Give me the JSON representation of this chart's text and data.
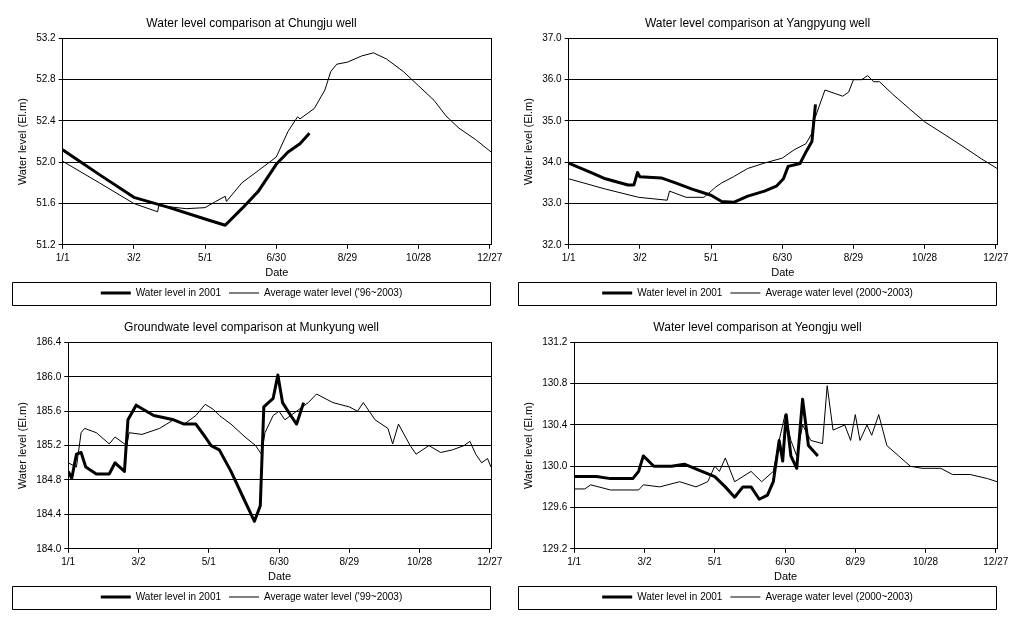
{
  "chart_data": [
    {
      "type": "line",
      "title": "Water level comparison at Chungju well",
      "xlabel": "Date",
      "ylabel": "Water level (El.m)",
      "legend": "bottom",
      "grid": "y",
      "xlim": [
        "--01-01",
        "--12-28"
      ],
      "xticks": [
        {
          "value": "--01-01",
          "label": "1/1"
        },
        {
          "value": "--03-02",
          "label": "3/2"
        },
        {
          "value": "--05-01",
          "label": "5/1"
        },
        {
          "value": "--06-30",
          "label": "6/30"
        },
        {
          "value": "--08-29",
          "label": "8/29"
        },
        {
          "value": "--10-28",
          "label": "10/28"
        },
        {
          "value": "--12-27",
          "label": "12/27"
        }
      ],
      "ylim": [
        51.2,
        53.2
      ],
      "yticks": [
        {
          "value": 51.2,
          "label": "51.2"
        },
        {
          "value": 51.6,
          "label": "51.6"
        },
        {
          "value": 52,
          "label": "52.0"
        },
        {
          "value": 52.4,
          "label": "52.4"
        },
        {
          "value": 52.8,
          "label": "52.8"
        },
        {
          "value": 53.2,
          "label": "53.2"
        }
      ],
      "series": [
        {
          "name": "Water level in 2001",
          "color": "#000000",
          "x": [
            "--01-01",
            "--02-01",
            "--03-02",
            "--04-01",
            "--05-01",
            "--05-18",
            "--06-01",
            "--06-15",
            "--06-30",
            "--07-10",
            "--07-20",
            "--07-28"
          ],
          "values": [
            52.12,
            51.88,
            51.66,
            51.56,
            51.45,
            51.39,
            51.55,
            51.72,
            51.98,
            52.1,
            52.18,
            52.28
          ]
        },
        {
          "name": "Average water level ('96~2003)",
          "color": "#000000",
          "x": [
            "--01-01",
            "--02-01",
            "--03-02",
            "--03-22",
            "--03-23",
            "--04-15",
            "--05-01",
            "--05-10",
            "--05-18",
            "--05-19",
            "--06-01",
            "--06-15",
            "--06-30",
            "--07-10",
            "--07-18",
            "--07-20",
            "--08-01",
            "--08-10",
            "--08-15",
            "--08-20",
            "--08-29",
            "--09-10",
            "--09-20",
            "--10-01",
            "--10-15",
            "--10-28",
            "--11-10",
            "--11-20",
            "--12-01",
            "--12-15",
            "--12-28"
          ],
          "values": [
            52.01,
            51.8,
            51.6,
            51.52,
            51.58,
            51.55,
            51.56,
            51.62,
            51.67,
            51.62,
            51.8,
            51.92,
            52.05,
            52.3,
            52.44,
            52.42,
            52.52,
            52.7,
            52.88,
            52.95,
            52.97,
            53.03,
            53.06,
            53.0,
            52.88,
            52.74,
            52.6,
            52.45,
            52.33,
            52.22,
            52.1
          ]
        }
      ]
    },
    {
      "type": "line",
      "title": "Water level comparison at Yangpyung well",
      "xlabel": "Date",
      "ylabel": "Water level (El.m)",
      "legend": "bottom",
      "grid": "y",
      "xlim": [
        "--01-01",
        "--12-28"
      ],
      "xticks": [
        {
          "value": "--01-01",
          "label": "1/1"
        },
        {
          "value": "--03-02",
          "label": "3/2"
        },
        {
          "value": "--05-01",
          "label": "5/1"
        },
        {
          "value": "--06-30",
          "label": "6/30"
        },
        {
          "value": "--08-29",
          "label": "8/29"
        },
        {
          "value": "--10-28",
          "label": "10/28"
        },
        {
          "value": "--12-27",
          "label": "12/27"
        }
      ],
      "ylim": [
        32,
        37
      ],
      "yticks": [
        {
          "value": 32,
          "label": "32.0"
        },
        {
          "value": 33,
          "label": "33.0"
        },
        {
          "value": 34,
          "label": "34.0"
        },
        {
          "value": 35,
          "label": "35.0"
        },
        {
          "value": 36,
          "label": "36.0"
        },
        {
          "value": 37,
          "label": "37.0"
        }
      ],
      "series": [
        {
          "name": "Water level in 2001",
          "color": "#000000",
          "x": [
            "--01-01",
            "--01-20",
            "--02-01",
            "--02-20",
            "--02-25",
            "--02-28",
            "--03-02",
            "--03-20",
            "--04-01",
            "--04-15",
            "--05-01",
            "--05-10",
            "--05-20",
            "--06-01",
            "--06-15",
            "--06-25",
            "--07-01",
            "--07-05",
            "--07-15",
            "--07-20",
            "--07-25",
            "--07-28"
          ],
          "values": [
            33.98,
            33.75,
            33.6,
            33.45,
            33.45,
            33.75,
            33.65,
            33.62,
            33.5,
            33.35,
            33.2,
            33.05,
            33.03,
            33.18,
            33.3,
            33.42,
            33.6,
            33.9,
            33.97,
            34.25,
            34.5,
            35.4
          ]
        },
        {
          "name": "Average water level (2000~2003)",
          "color": "#000000",
          "x": [
            "--01-01",
            "--02-01",
            "--03-01",
            "--03-25",
            "--03-27",
            "--04-10",
            "--04-25",
            "--05-05",
            "--05-10",
            "--05-20",
            "--06-01",
            "--06-15",
            "--06-30",
            "--07-10",
            "--07-20",
            "--07-25",
            "--07-26",
            "--07-28",
            "--08-05",
            "--08-20",
            "--08-25",
            "--08-29",
            "--09-05",
            "--09-10",
            "--09-15",
            "--09-20",
            "--10-01",
            "--10-15",
            "--10-28",
            "--11-15",
            "--12-01",
            "--12-15",
            "--12-28"
          ],
          "values": [
            33.6,
            33.35,
            33.15,
            33.08,
            33.3,
            33.15,
            33.15,
            33.4,
            33.5,
            33.65,
            33.85,
            33.98,
            34.1,
            34.3,
            34.45,
            34.7,
            35.0,
            35.1,
            35.75,
            35.6,
            35.7,
            36.0,
            36.0,
            36.1,
            35.95,
            35.95,
            35.65,
            35.3,
            34.98,
            34.65,
            34.35,
            34.08,
            33.85
          ]
        }
      ]
    },
    {
      "type": "line",
      "title": "Groundwate level comparison at Munkyung well",
      "xlabel": "Date",
      "ylabel": "Water level (El.m)",
      "legend": "bottom",
      "grid": "y",
      "xlim": [
        "--01-01",
        "--12-28"
      ],
      "xticks": [
        {
          "value": "--01-01",
          "label": "1/1"
        },
        {
          "value": "--03-02",
          "label": "3/2"
        },
        {
          "value": "--05-01",
          "label": "5/1"
        },
        {
          "value": "--06-30",
          "label": "6/30"
        },
        {
          "value": "--08-29",
          "label": "8/29"
        },
        {
          "value": "--10-28",
          "label": "10/28"
        },
        {
          "value": "--12-27",
          "label": "12/27"
        }
      ],
      "ylim": [
        184,
        186.4
      ],
      "yticks": [
        {
          "value": 184,
          "label": "184.0"
        },
        {
          "value": 184.4,
          "label": "184.4"
        },
        {
          "value": 184.8,
          "label": "184.8"
        },
        {
          "value": 185.2,
          "label": "185.2"
        },
        {
          "value": 185.6,
          "label": "185.6"
        },
        {
          "value": 186,
          "label": "186.0"
        },
        {
          "value": 186.4,
          "label": "186.4"
        }
      ],
      "series": [
        {
          "name": "Water level in 2001",
          "color": "#000000",
          "x": [
            "--01-01",
            "--01-04",
            "--01-08",
            "--01-12",
            "--01-16",
            "--01-25",
            "--02-05",
            "--02-10",
            "--02-18",
            "--02-21",
            "--02-28",
            "--03-15",
            "--04-01",
            "--04-10",
            "--04-20",
            "--04-28",
            "--05-03",
            "--05-10",
            "--05-20",
            "--06-01",
            "--06-09",
            "--06-14",
            "--06-17",
            "--06-25",
            "--06-29",
            "--07-03",
            "--07-10",
            "--07-15",
            "--07-21"
          ],
          "values": [
            184.9,
            184.82,
            185.1,
            185.12,
            184.95,
            184.87,
            184.87,
            185.0,
            184.9,
            185.5,
            185.67,
            185.55,
            185.5,
            185.45,
            185.45,
            185.3,
            185.2,
            185.15,
            184.9,
            184.55,
            184.32,
            184.5,
            185.65,
            185.75,
            186.02,
            185.7,
            185.55,
            185.45,
            185.7
          ]
        },
        {
          "name": "Average water level ('99~2003)",
          "color": "#000000",
          "x": [
            "--01-01",
            "--01-08",
            "--01-12",
            "--01-15",
            "--01-25",
            "--02-05",
            "--02-10",
            "--02-20",
            "--02-22",
            "--03-05",
            "--03-20",
            "--04-01",
            "--04-10",
            "--04-20",
            "--04-28",
            "--05-05",
            "--05-10",
            "--05-20",
            "--06-01",
            "--06-10",
            "--06-15",
            "--06-18",
            "--06-25",
            "--06-30",
            "--07-05",
            "--07-15",
            "--07-25",
            "--08-01",
            "--08-15",
            "--08-29",
            "--09-05",
            "--09-10",
            "--09-20",
            "--10-01",
            "--10-05",
            "--10-10",
            "--10-20",
            "--10-25",
            "--11-05",
            "--11-15",
            "--11-25",
            "--12-05",
            "--12-10",
            "--12-15",
            "--12-20",
            "--12-25",
            "--12-28"
          ],
          "values": [
            185.0,
            184.95,
            185.35,
            185.4,
            185.35,
            185.22,
            185.3,
            185.2,
            185.35,
            185.33,
            185.4,
            185.5,
            185.45,
            185.55,
            185.68,
            185.62,
            185.55,
            185.45,
            185.3,
            185.2,
            185.1,
            185.35,
            185.55,
            185.6,
            185.5,
            185.6,
            185.7,
            185.8,
            185.7,
            185.65,
            185.6,
            185.7,
            185.5,
            185.4,
            185.22,
            185.45,
            185.2,
            185.1,
            185.2,
            185.12,
            185.15,
            185.2,
            185.25,
            185.1,
            185.0,
            185.05,
            184.95
          ]
        }
      ]
    },
    {
      "type": "line",
      "title": "Water level comparison at Yeongju well",
      "xlabel": "Date",
      "ylabel": "Water level (El.m)",
      "legend": "bottom",
      "grid": "y",
      "xlim": [
        "--01-01",
        "--12-28"
      ],
      "xticks": [
        {
          "value": "--01-01",
          "label": "1/1"
        },
        {
          "value": "--03-02",
          "label": "3/2"
        },
        {
          "value": "--05-01",
          "label": "5/1"
        },
        {
          "value": "--06-30",
          "label": "6/30"
        },
        {
          "value": "--08-29",
          "label": "8/29"
        },
        {
          "value": "--10-28",
          "label": "10/28"
        },
        {
          "value": "--12-27",
          "label": "12/27"
        }
      ],
      "ylim": [
        129.2,
        131.2
      ],
      "yticks": [
        {
          "value": 129.2,
          "label": "129.2"
        },
        {
          "value": 129.6,
          "label": "129.6"
        },
        {
          "value": 130,
          "label": "130.0"
        },
        {
          "value": 130.4,
          "label": "130.4"
        },
        {
          "value": 130.8,
          "label": "130.8"
        },
        {
          "value": 131.2,
          "label": "131.2"
        }
      ],
      "series": [
        {
          "name": "Water level in 2001",
          "color": "#000000",
          "x": [
            "--01-01",
            "--01-20",
            "--02-01",
            "--02-20",
            "--02-25",
            "--03-01",
            "--03-10",
            "--03-25",
            "--04-05",
            "--04-20",
            "--05-01",
            "--05-10",
            "--05-18",
            "--05-25",
            "--06-01",
            "--06-08",
            "--06-15",
            "--06-20",
            "--06-25",
            "--06-28",
            "--07-01",
            "--07-05",
            "--07-10",
            "--07-15",
            "--07-20",
            "--07-28"
          ],
          "values": [
            129.9,
            129.9,
            129.88,
            129.88,
            129.95,
            130.1,
            130.0,
            130.0,
            130.02,
            129.95,
            129.9,
            129.8,
            129.7,
            129.8,
            129.8,
            129.68,
            129.72,
            129.85,
            130.25,
            130.05,
            130.5,
            130.1,
            129.98,
            130.65,
            130.2,
            130.1
          ]
        },
        {
          "name": "Average water level (2000~2003)",
          "color": "#000000",
          "x": [
            "--01-01",
            "--01-10",
            "--01-15",
            "--02-01",
            "--02-25",
            "--03-01",
            "--03-15",
            "--04-01",
            "--04-15",
            "--04-25",
            "--05-01",
            "--05-05",
            "--05-10",
            "--05-18",
            "--06-01",
            "--06-10",
            "--06-20",
            "--06-25",
            "--06-30",
            "--07-05",
            "--07-10",
            "--07-15",
            "--07-22",
            "--08-01",
            "--08-05",
            "--08-10",
            "--08-20",
            "--08-25",
            "--08-29",
            "--09-02",
            "--09-08",
            "--09-12",
            "--09-18",
            "--09-25",
            "--10-05",
            "--10-15",
            "--10-25",
            "--11-10",
            "--11-20",
            "--12-05",
            "--12-20",
            "--12-28"
          ],
          "values": [
            129.78,
            129.78,
            129.82,
            129.77,
            129.77,
            129.82,
            129.8,
            129.85,
            129.8,
            129.85,
            130.0,
            129.95,
            130.08,
            129.85,
            129.95,
            129.85,
            129.95,
            130.25,
            130.5,
            130.25,
            130.1,
            130.4,
            130.25,
            130.22,
            130.78,
            130.35,
            130.4,
            130.25,
            130.5,
            130.25,
            130.4,
            130.3,
            130.5,
            130.2,
            130.1,
            130.0,
            129.98,
            129.98,
            129.92,
            129.92,
            129.88,
            129.85
          ]
        }
      ]
    }
  ]
}
